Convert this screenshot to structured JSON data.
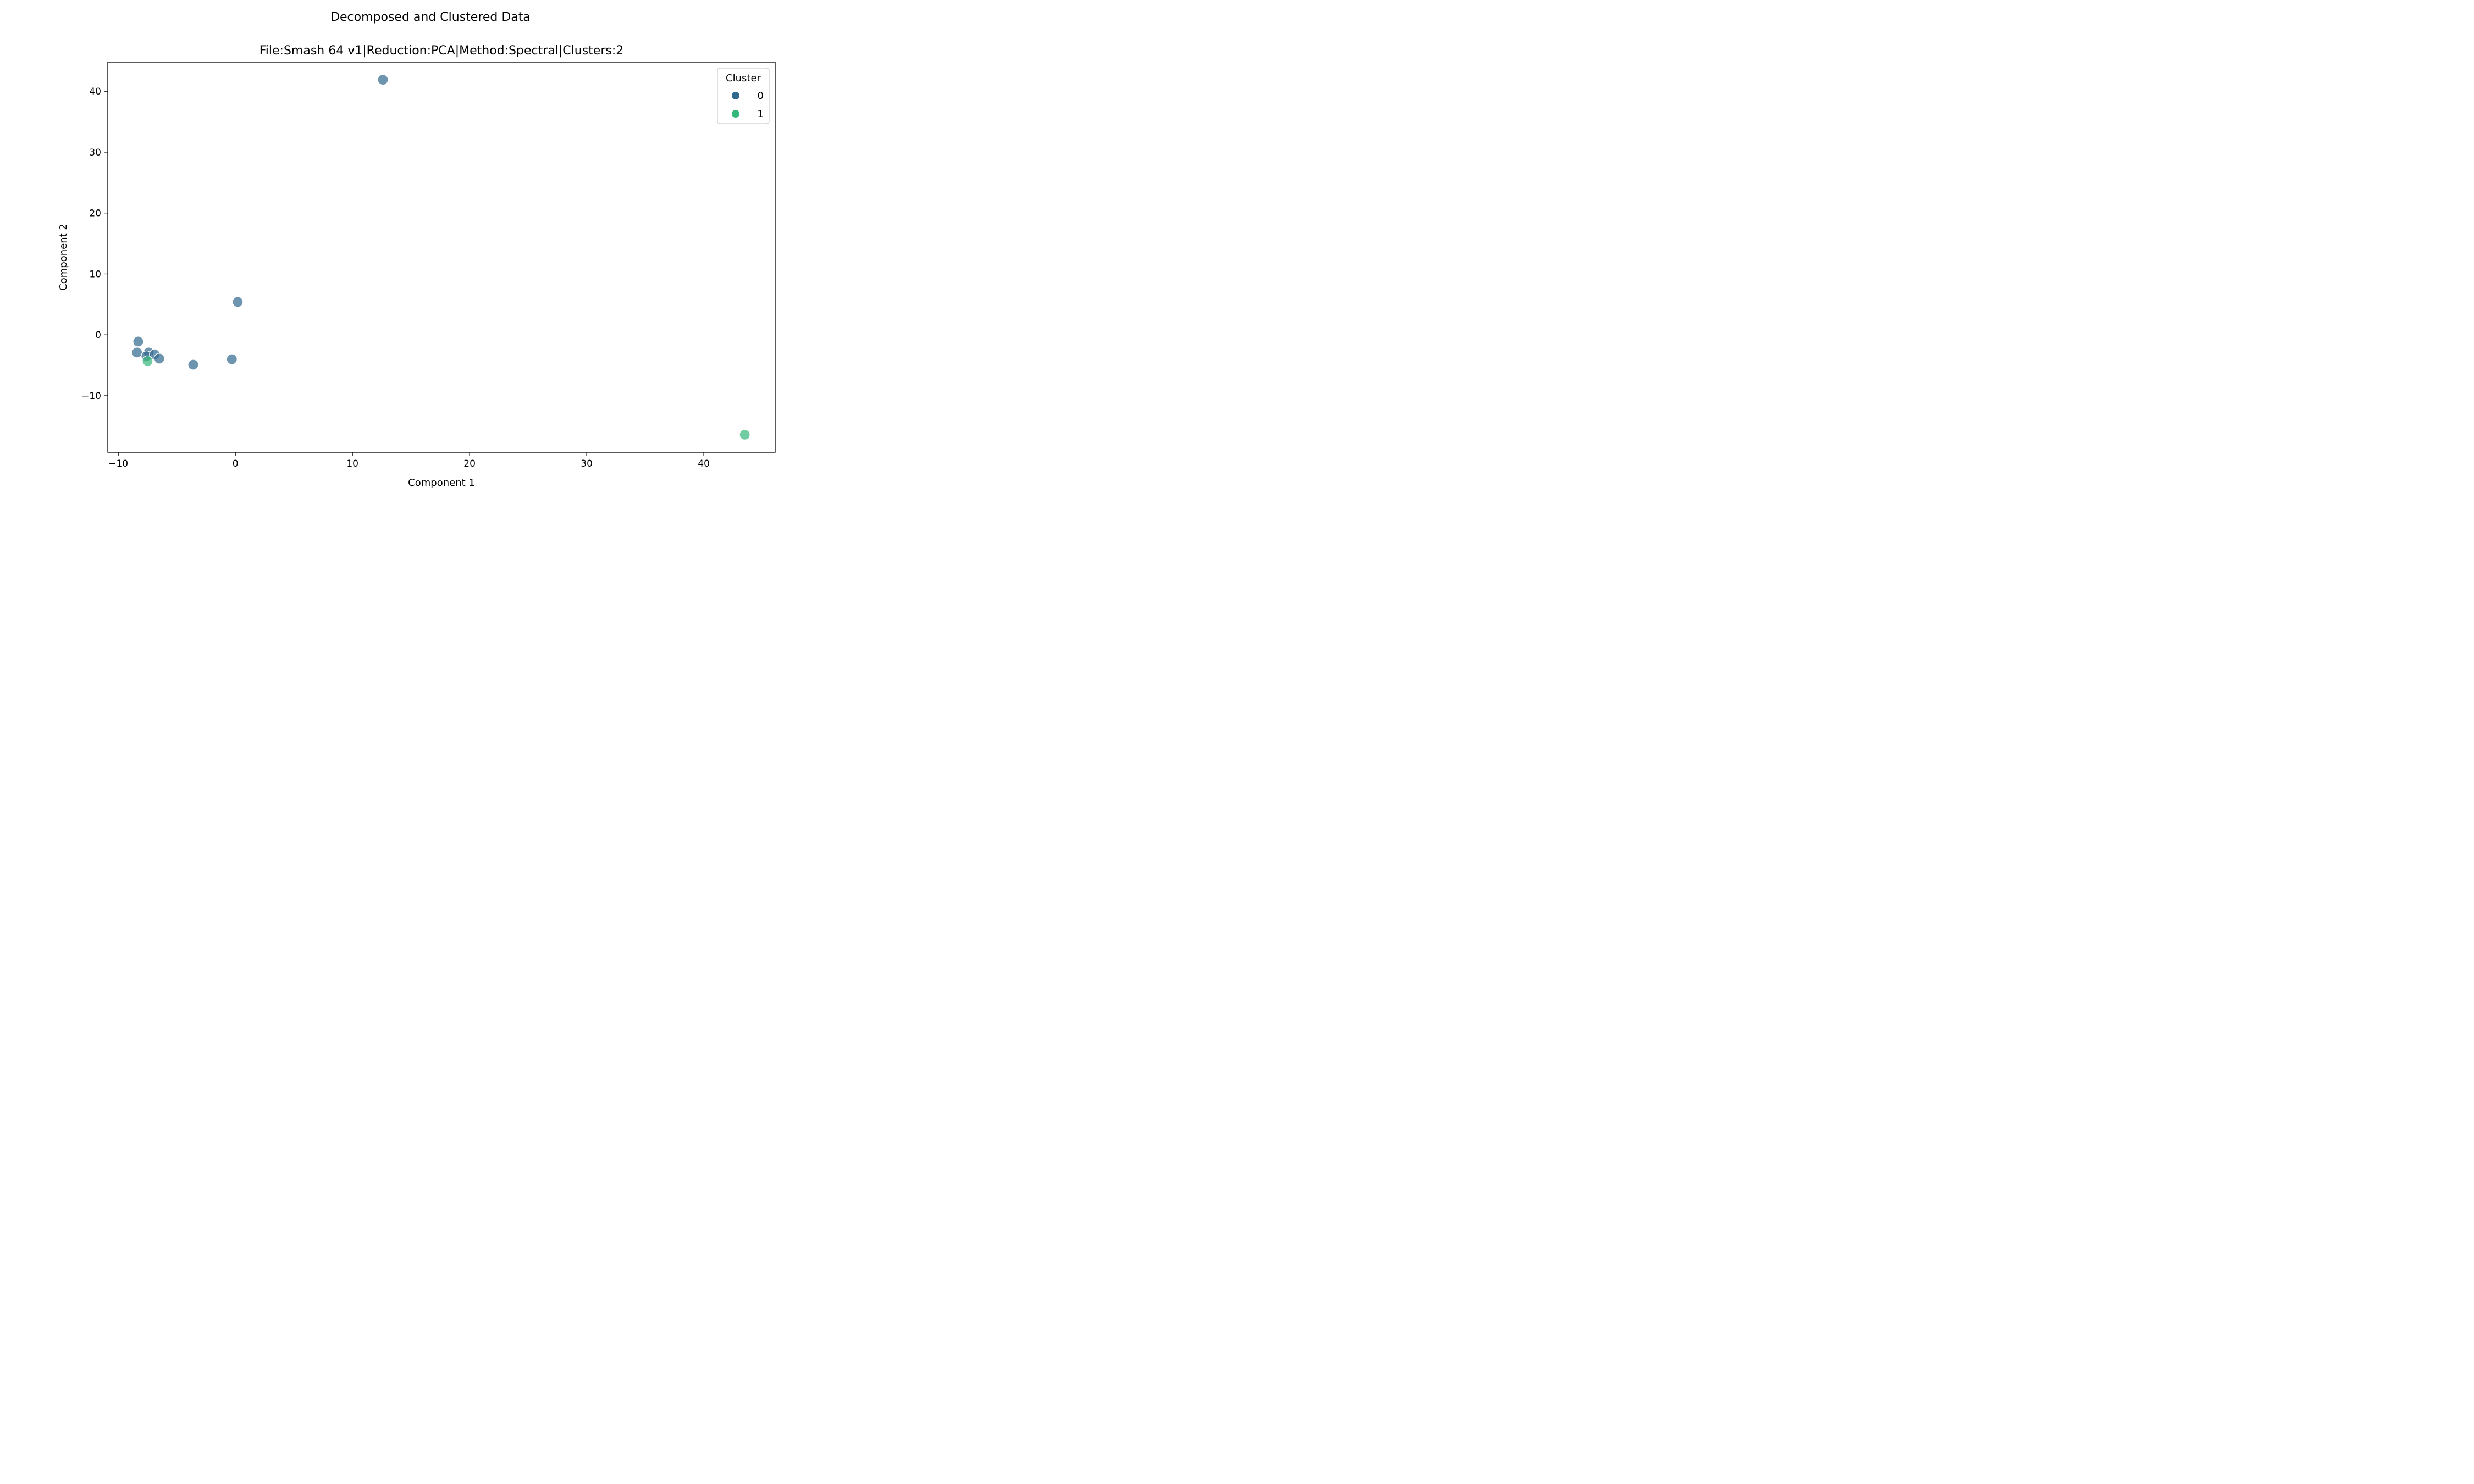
{
  "chart_data": {
    "type": "scatter",
    "suptitle": "Decomposed and Clustered Data",
    "title": "File:Smash 64 v1|Reduction:PCA|Method:Spectral|Clusters:2",
    "xlabel": "Component 1",
    "ylabel": "Component 2",
    "xlim": [
      -10.9,
      46.1
    ],
    "ylim": [
      -19.3,
      44.8
    ],
    "xticks": [
      -10,
      0,
      10,
      20,
      30,
      40
    ],
    "yticks": [
      -10,
      0,
      10,
      20,
      30,
      40
    ],
    "xtick_labels": [
      "−10",
      "0",
      "10",
      "20",
      "30",
      "40"
    ],
    "ytick_labels": [
      "−10",
      "0",
      "10",
      "20",
      "30",
      "40"
    ],
    "grid": false,
    "legend": {
      "title": "Cluster",
      "position": "upper-right"
    },
    "series": [
      {
        "name": "0",
        "color": "#31688e",
        "points": [
          {
            "x": 12.6,
            "y": 41.9
          },
          {
            "x": 0.2,
            "y": 5.4
          },
          {
            "x": -8.3,
            "y": -1.1
          },
          {
            "x": -8.4,
            "y": -2.9
          },
          {
            "x": -7.4,
            "y": -2.9
          },
          {
            "x": -7.6,
            "y": -3.5
          },
          {
            "x": -6.9,
            "y": -3.2
          },
          {
            "x": -6.5,
            "y": -3.9
          },
          {
            "x": -3.6,
            "y": -4.9
          },
          {
            "x": -0.3,
            "y": -4.0
          }
        ]
      },
      {
        "name": "1",
        "color": "#35b779",
        "points": [
          {
            "x": -7.5,
            "y": -4.3
          },
          {
            "x": 43.5,
            "y": -16.4
          }
        ]
      }
    ]
  }
}
